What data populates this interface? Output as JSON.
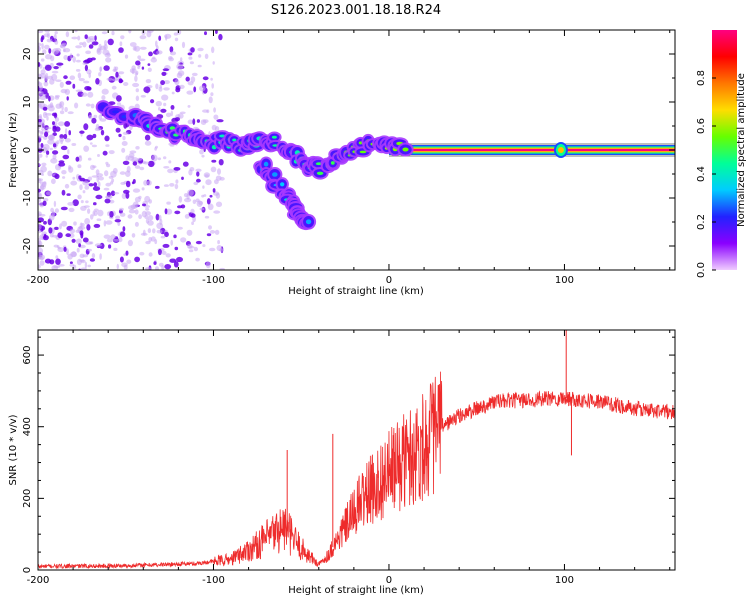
{
  "title": "S126.2023.001.18.18.R24",
  "colors": {
    "background": "#ffffff",
    "axis": "#000000",
    "snr_line": "#ee2b2b",
    "scatter_light": "#c8a6f4",
    "scatter_dark": "#6a00e6",
    "trace_center": "#d4006a"
  },
  "chart_data": [
    {
      "type": "heatmap",
      "name": "spectrogram",
      "xlabel": "Height of straight line (km)",
      "ylabel": "Frequency (Hz)",
      "xlim": [
        -200,
        163
      ],
      "ylim": [
        -25,
        25
      ],
      "xticks": [
        -200,
        -100,
        0,
        100
      ],
      "yticks": [
        -20,
        -10,
        0,
        10,
        20
      ],
      "colorbar": {
        "label": "Normalized spectral amplitude",
        "range": [
          0,
          1
        ],
        "ticks": [
          "0.0",
          "0.2",
          "0.4",
          "0.6",
          "0.8"
        ],
        "tick_values": [
          0.0,
          0.2,
          0.4,
          0.6,
          0.8
        ],
        "colormap": [
          "#f0ccff",
          "#8a00ff",
          "#2222ff",
          "#00ccff",
          "#00ff99",
          "#66ff00",
          "#ffdd00",
          "#ff7700",
          "#ff0000",
          "#ff0080"
        ]
      },
      "ridge_points": [
        {
          "x": -162,
          "f": 8,
          "a": 0.2
        },
        {
          "x": -145,
          "f": 7,
          "a": 0.25
        },
        {
          "x": -135,
          "f": 5,
          "a": 0.4
        },
        {
          "x": -125,
          "f": 4,
          "a": 0.5
        },
        {
          "x": -115,
          "f": 3,
          "a": 0.45
        },
        {
          "x": -105,
          "f": 1,
          "a": 0.45
        },
        {
          "x": -95,
          "f": 2,
          "a": 0.4
        },
        {
          "x": -85,
          "f": 1,
          "a": 0.45
        },
        {
          "x": -75,
          "f": 2,
          "a": 0.4
        },
        {
          "x": -65,
          "f": 2,
          "a": 0.45
        },
        {
          "x": -55,
          "f": -1,
          "a": 0.4
        },
        {
          "x": -45,
          "f": -3,
          "a": 0.45
        },
        {
          "x": -38,
          "f": -4,
          "a": 0.5
        },
        {
          "x": -30,
          "f": -2,
          "a": 0.5
        },
        {
          "x": -20,
          "f": 0,
          "a": 0.55
        },
        {
          "x": -10,
          "f": 1,
          "a": 0.55
        },
        {
          "x": 0,
          "f": 0.5,
          "a": 0.6
        },
        {
          "x": 10,
          "f": 0.5,
          "a": 0.55
        }
      ],
      "branch_points": [
        {
          "x": -72,
          "f": -3,
          "a": 0.3
        },
        {
          "x": -66,
          "f": -6,
          "a": 0.3
        },
        {
          "x": -60,
          "f": -9,
          "a": 0.35
        },
        {
          "x": -55,
          "f": -12,
          "a": 0.4
        },
        {
          "x": -50,
          "f": -14,
          "a": 0.35
        },
        {
          "x": -45,
          "f": -16,
          "a": 0.3
        }
      ],
      "carrier": {
        "f": 0,
        "x_start": 0,
        "x_end": 163,
        "peak_amplitude": 1.0,
        "bump_at_x": 98
      }
    },
    {
      "type": "line",
      "name": "snr",
      "xlabel": "Height of straight line (km)",
      "ylabel": "SNR (10 * v/v)",
      "xlim": [
        -200,
        163
      ],
      "ylim": [
        0,
        670
      ],
      "xticks": [
        -200,
        -100,
        0,
        100
      ],
      "yticks": [
        0,
        200,
        400,
        600
      ],
      "envelope": {
        "x": [
          -200,
          -150,
          -110,
          -90,
          -75,
          -60,
          -50,
          -40,
          -35,
          -25,
          -15,
          0,
          15,
          30,
          40,
          60,
          80,
          100,
          120,
          140,
          163
        ],
        "y": [
          10,
          12,
          18,
          30,
          70,
          120,
          60,
          15,
          40,
          120,
          200,
          270,
          330,
          400,
          430,
          470,
          475,
          480,
          470,
          450,
          440
        ]
      },
      "spikes": [
        {
          "x": -58,
          "y": 335
        },
        {
          "x": -32,
          "y": 380
        },
        {
          "x": 101,
          "y": 670
        },
        {
          "x": 104,
          "y": 320
        }
      ]
    }
  ]
}
